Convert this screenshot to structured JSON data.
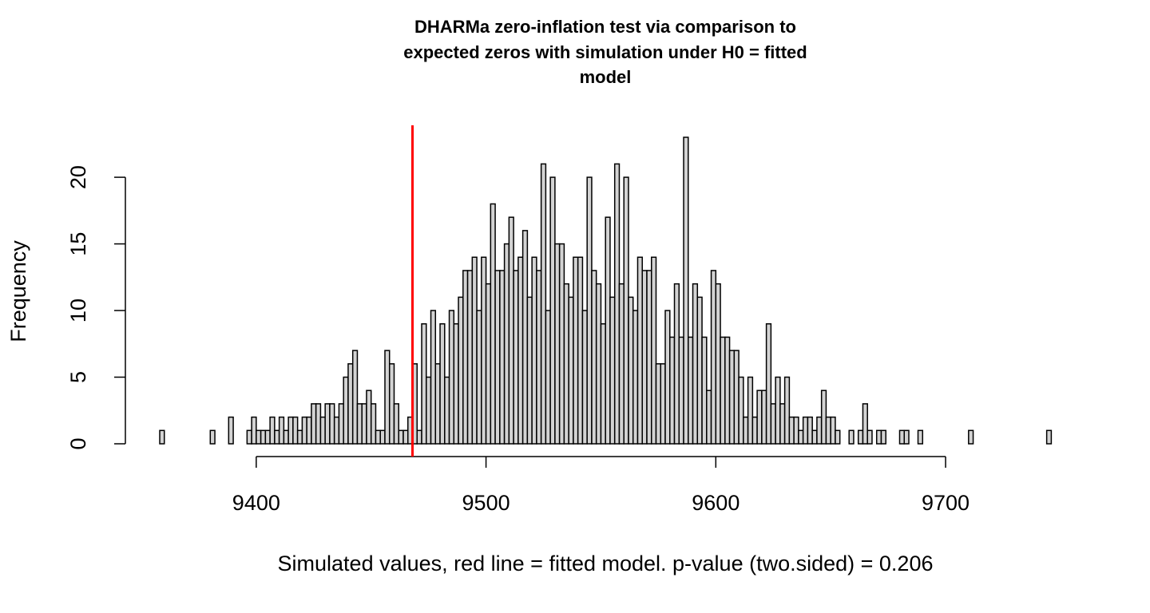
{
  "chart_data": {
    "type": "histogram",
    "title": [
      "DHARMa zero-inflation test via comparison to",
      "expected zeros with simulation under H0 = fitted",
      "model"
    ],
    "xlabel": "Simulated values, red line = fitted model. p-value (two.sided) = 0.206",
    "ylabel": "Frequency",
    "color": "#d3d3d3",
    "vline": 9468,
    "vline_color": "#ff0000",
    "xlim": [
      9358,
      9746
    ],
    "ylim": [
      0,
      23
    ],
    "xticks": [
      9400,
      9500,
      9600,
      9700
    ],
    "yticks": [
      0,
      5,
      10,
      15,
      20
    ],
    "bins": [
      9358,
      9360,
      9362,
      9364,
      9366,
      9368,
      9370,
      9372,
      9374,
      9376,
      9378,
      9380,
      9382,
      9384,
      9386,
      9388,
      9390,
      9392,
      9394,
      9396,
      9398,
      9400,
      9402,
      9404,
      9406,
      9408,
      9410,
      9412,
      9414,
      9416,
      9418,
      9420,
      9422,
      9424,
      9426,
      9428,
      9430,
      9432,
      9434,
      9436,
      9438,
      9440,
      9442,
      9444,
      9446,
      9448,
      9450,
      9452,
      9454,
      9456,
      9458,
      9460,
      9462,
      9464,
      9466,
      9468,
      9470,
      9472,
      9474,
      9476,
      9478,
      9480,
      9482,
      9484,
      9486,
      9488,
      9490,
      9492,
      9494,
      9496,
      9498,
      9500,
      9502,
      9504,
      9506,
      9508,
      9510,
      9512,
      9514,
      9516,
      9518,
      9520,
      9522,
      9524,
      9526,
      9528,
      9530,
      9532,
      9534,
      9536,
      9538,
      9540,
      9542,
      9544,
      9546,
      9548,
      9550,
      9552,
      9554,
      9556,
      9558,
      9560,
      9562,
      9564,
      9566,
      9568,
      9570,
      9572,
      9574,
      9576,
      9578,
      9580,
      9582,
      9584,
      9586,
      9588,
      9590,
      9592,
      9594,
      9596,
      9598,
      9600,
      9602,
      9604,
      9606,
      9608,
      9610,
      9612,
      9614,
      9616,
      9618,
      9620,
      9622,
      9624,
      9626,
      9628,
      9630,
      9632,
      9634,
      9636,
      9638,
      9640,
      9642,
      9644,
      9646,
      9648,
      9650,
      9652,
      9654,
      9656,
      9658,
      9660,
      9662,
      9664,
      9666,
      9668,
      9670,
      9672,
      9674,
      9676,
      9678,
      9680,
      9682,
      9684,
      9686,
      9688,
      9690,
      9692,
      9694,
      9696,
      9698,
      9700,
      9702,
      9704,
      9706,
      9708,
      9710,
      9712,
      9714,
      9716,
      9718,
      9720,
      9722,
      9724,
      9726,
      9728,
      9730,
      9732,
      9734,
      9736,
      9738,
      9740,
      9742,
      9744,
      9746
    ],
    "values": [
      1,
      0,
      0,
      0,
      0,
      0,
      0,
      0,
      0,
      0,
      0,
      1,
      0,
      0,
      0,
      2,
      0,
      0,
      0,
      1,
      2,
      1,
      1,
      1,
      2,
      1,
      2,
      1,
      2,
      2,
      1,
      2,
      2,
      3,
      3,
      2,
      3,
      3,
      2,
      3,
      5,
      6,
      7,
      3,
      3,
      4,
      3,
      1,
      1,
      7,
      6,
      3,
      1,
      1,
      2,
      6,
      1,
      9,
      5,
      10,
      6,
      9,
      5,
      10,
      9,
      11,
      13,
      13,
      14,
      10,
      14,
      12,
      18,
      13,
      13,
      15,
      17,
      13,
      14,
      16,
      11,
      14,
      13,
      21,
      10,
      20,
      15,
      15,
      12,
      11,
      14,
      14,
      10,
      20,
      13,
      12,
      9,
      17,
      11,
      21,
      12,
      20,
      11,
      10,
      14,
      13,
      13,
      14,
      6,
      6,
      10,
      8,
      12,
      8,
      23,
      8,
      12,
      11,
      8,
      4,
      13,
      12,
      8,
      8,
      7,
      7,
      5,
      2,
      5,
      2,
      4,
      4,
      9,
      3,
      5,
      3,
      5,
      2,
      2,
      1,
      2,
      2,
      1,
      2,
      4,
      2,
      2,
      1,
      0,
      0,
      1,
      0,
      1,
      3,
      1,
      0,
      1,
      1,
      0,
      0,
      0,
      1,
      1,
      0,
      0,
      1,
      0,
      0,
      0,
      0,
      0,
      0,
      0,
      0,
      0,
      0,
      1,
      0,
      0,
      0,
      0,
      0,
      0,
      0,
      0,
      0,
      0,
      0,
      0,
      0,
      0,
      0,
      0,
      1
    ]
  }
}
